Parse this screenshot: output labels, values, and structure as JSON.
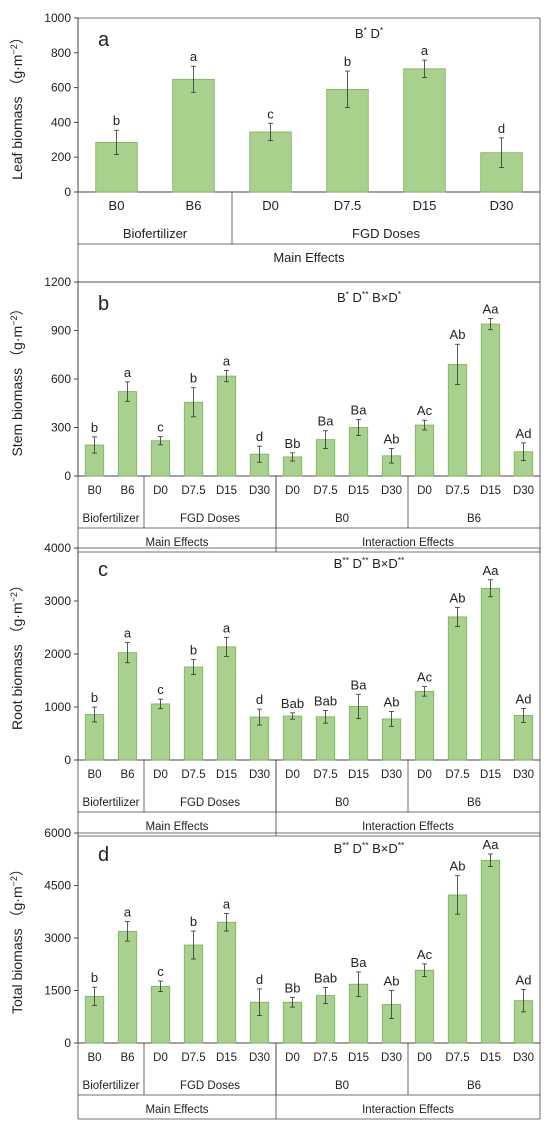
{
  "chart_data": [
    {
      "type": "bar",
      "panel_letter": "a",
      "significance": "B* D*",
      "ylabel": "Leaf biomass （g·m⁻²）",
      "ylim": [
        0,
        1000
      ],
      "yticks": [
        0,
        200,
        400,
        600,
        800,
        1000
      ],
      "categories": [
        "B0",
        "B6",
        "D0",
        "D7.5",
        "D15",
        "D30"
      ],
      "values": [
        285,
        648,
        345,
        590,
        708,
        226
      ],
      "errors": [
        70,
        75,
        50,
        105,
        50,
        85
      ],
      "letters": [
        "b",
        "a",
        "c",
        "b",
        "a",
        "d"
      ],
      "bar_color": "#a9d18e",
      "groups": [
        {
          "label": "Biofertilizer",
          "from": 0,
          "to": 1
        },
        {
          "label": "FGD Doses",
          "from": 2,
          "to": 5
        }
      ],
      "sections": [
        {
          "label": "Main Effects",
          "from": 0,
          "to": 5
        }
      ]
    },
    {
      "type": "bar",
      "panel_letter": "b",
      "significance": "B* D** B×D*",
      "ylabel": "Stem biomass （g·m⁻²）",
      "ylim": [
        0,
        1200
      ],
      "yticks": [
        0,
        300,
        600,
        900,
        1200
      ],
      "categories": [
        "B0",
        "B6",
        "D0",
        "D7.5",
        "D15",
        "D30",
        "D0",
        "D7.5",
        "D15",
        "D30",
        "D0",
        "D7.5",
        "D15",
        "D30"
      ],
      "values": [
        192,
        522,
        218,
        456,
        618,
        135,
        118,
        225,
        300,
        125,
        315,
        690,
        940,
        150
      ],
      "errors": [
        50,
        60,
        25,
        90,
        35,
        50,
        25,
        55,
        50,
        45,
        30,
        125,
        35,
        55
      ],
      "letters": [
        "b",
        "a",
        "c",
        "b",
        "a",
        "d",
        "Bb",
        "Ba",
        "Ba",
        "Ab",
        "Ac",
        "Ab",
        "Aa",
        "Ad"
      ],
      "bar_color": "#a9d18e",
      "groups": [
        {
          "label": "Biofertilizer",
          "from": 0,
          "to": 1
        },
        {
          "label": "FGD Doses",
          "from": 2,
          "to": 5
        },
        {
          "label": "B0",
          "from": 6,
          "to": 9
        },
        {
          "label": "B6",
          "from": 10,
          "to": 13
        }
      ],
      "sections": [
        {
          "label": "Main Effects",
          "from": 0,
          "to": 5
        },
        {
          "label": "Interaction Effects",
          "from": 6,
          "to": 13
        }
      ]
    },
    {
      "type": "bar",
      "panel_letter": "c",
      "significance": "B** D** B×D**",
      "ylabel": "Root biomass （g·m⁻²）",
      "ylim": [
        0,
        4000
      ],
      "yticks": [
        0,
        1000,
        2000,
        3000,
        4000
      ],
      "categories": [
        "B0",
        "B6",
        "D0",
        "D7.5",
        "D15",
        "D30",
        "D0",
        "D7.5",
        "D15",
        "D30",
        "D0",
        "D7.5",
        "D15",
        "D30"
      ],
      "values": [
        858,
        2025,
        1058,
        1755,
        2135,
        810,
        830,
        815,
        1010,
        775,
        1295,
        2700,
        3240,
        840
      ],
      "errors": [
        140,
        190,
        90,
        140,
        180,
        150,
        60,
        120,
        230,
        140,
        90,
        180,
        160,
        130
      ],
      "letters": [
        "b",
        "a",
        "c",
        "b",
        "a",
        "d",
        "Bab",
        "Bab",
        "Ba",
        "Ab",
        "Ac",
        "Ab",
        "Aa",
        "Ad"
      ],
      "bar_color": "#a9d18e",
      "groups": [
        {
          "label": "Biofertilizer",
          "from": 0,
          "to": 1
        },
        {
          "label": "FGD Doses",
          "from": 2,
          "to": 5
        },
        {
          "label": "B0",
          "from": 6,
          "to": 9
        },
        {
          "label": "B6",
          "from": 10,
          "to": 13
        }
      ],
      "sections": [
        {
          "label": "Main Effects",
          "from": 0,
          "to": 5
        },
        {
          "label": "Interaction Effects",
          "from": 6,
          "to": 13
        }
      ]
    },
    {
      "type": "bar",
      "panel_letter": "d",
      "significance": "B** D** B×D**",
      "ylabel": "Total biomass （g·m⁻²）",
      "ylim": [
        0,
        6000
      ],
      "yticks": [
        0,
        1500,
        3000,
        4500,
        6000
      ],
      "categories": [
        "B0",
        "B6",
        "D0",
        "D7.5",
        "D15",
        "D30",
        "D0",
        "D7.5",
        "D15",
        "D30",
        "D0",
        "D7.5",
        "D15",
        "D30"
      ],
      "values": [
        1335,
        3190,
        1620,
        2800,
        3450,
        1165,
        1165,
        1355,
        1680,
        1100,
        2080,
        4230,
        5220,
        1210
      ],
      "errors": [
        260,
        280,
        150,
        400,
        250,
        380,
        140,
        230,
        350,
        400,
        180,
        550,
        180,
        320
      ],
      "letters": [
        "b",
        "a",
        "c",
        "b",
        "a",
        "d",
        "Bb",
        "Bab",
        "Ba",
        "Ab",
        "Ac",
        "Ab",
        "Aa",
        "Ad"
      ],
      "bar_color": "#a9d18e",
      "groups": [
        {
          "label": "Biofertilizer",
          "from": 0,
          "to": 1
        },
        {
          "label": "FGD Doses",
          "from": 2,
          "to": 5
        },
        {
          "label": "B0",
          "from": 6,
          "to": 9
        },
        {
          "label": "B6",
          "from": 10,
          "to": 13
        }
      ],
      "sections": [
        {
          "label": "Main Effects",
          "from": 0,
          "to": 5
        },
        {
          "label": "Interaction Effects",
          "from": 6,
          "to": 13
        }
      ]
    }
  ]
}
